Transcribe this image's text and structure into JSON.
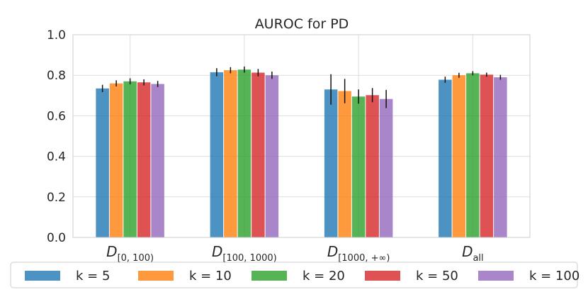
{
  "chart_data": {
    "type": "bar",
    "title": "AUROC for PD",
    "xlabel": "",
    "ylabel": "",
    "ylim": [
      0,
      1.0
    ],
    "yticks": [
      "0.0",
      "0.2",
      "0.4",
      "0.6",
      "0.8",
      "1.0"
    ],
    "grid": true,
    "legend_position": "bottom",
    "categories": [
      {
        "base": "D",
        "sub": "[0, 100)"
      },
      {
        "base": "D",
        "sub": "[100, 1000)"
      },
      {
        "base": "D",
        "sub": "[1000, +∞)"
      },
      {
        "base": "D",
        "sub": "all"
      }
    ],
    "series": [
      {
        "name": "k = 5",
        "color": "#1f77b4",
        "values": [
          0.735,
          0.815,
          0.73,
          0.778
        ],
        "errors": [
          0.018,
          0.02,
          0.075,
          0.015
        ]
      },
      {
        "name": "k = 10",
        "color": "#ff7f0e",
        "values": [
          0.76,
          0.825,
          0.722,
          0.8
        ],
        "errors": [
          0.015,
          0.015,
          0.06,
          0.012
        ]
      },
      {
        "name": "k = 20",
        "color": "#2ca02c",
        "values": [
          0.77,
          0.828,
          0.695,
          0.81
        ],
        "errors": [
          0.015,
          0.015,
          0.035,
          0.01
        ]
      },
      {
        "name": "k = 50",
        "color": "#d62728",
        "values": [
          0.765,
          0.813,
          0.702,
          0.803
        ],
        "errors": [
          0.015,
          0.018,
          0.035,
          0.01
        ]
      },
      {
        "name": "k = 100",
        "color": "#9467bd",
        "values": [
          0.757,
          0.8,
          0.683,
          0.79
        ],
        "errors": [
          0.015,
          0.018,
          0.045,
          0.012
        ]
      }
    ]
  }
}
